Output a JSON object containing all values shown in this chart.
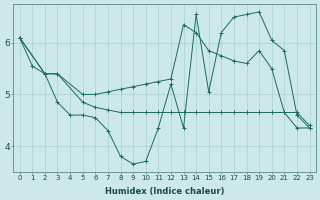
{
  "xlabel": "Humidex (Indice chaleur)",
  "bg_color": "#cce8e8",
  "line_color": "#1a6b60",
  "grid_color": "#aad0d0",
  "xlim": [
    -0.5,
    23.5
  ],
  "ylim": [
    3.5,
    6.75
  ],
  "yticks": [
    4,
    5,
    6
  ],
  "xticks": [
    0,
    1,
    2,
    3,
    4,
    5,
    6,
    7,
    8,
    9,
    10,
    11,
    12,
    13,
    14,
    15,
    16,
    17,
    18,
    19,
    20,
    21,
    22,
    23
  ],
  "line1_x": [
    0,
    1,
    2,
    3,
    4,
    5,
    6,
    7,
    8,
    9,
    10,
    11,
    12,
    13,
    14,
    15,
    16,
    17,
    18,
    19,
    20,
    21,
    22,
    23
  ],
  "line1_y": [
    6.1,
    5.55,
    5.4,
    4.85,
    4.6,
    4.6,
    4.55,
    4.3,
    3.8,
    3.65,
    3.7,
    4.35,
    5.2,
    4.35,
    6.55,
    5.05,
    6.2,
    6.5,
    6.55,
    6.6,
    6.05,
    5.85,
    4.6,
    4.35
  ],
  "line2_x": [
    0,
    2,
    3,
    5,
    6,
    7,
    8,
    9,
    10,
    11,
    12,
    13,
    14,
    15,
    16,
    17,
    18,
    19,
    20,
    21,
    22,
    23
  ],
  "line2_y": [
    6.1,
    5.4,
    5.4,
    4.85,
    4.75,
    4.7,
    4.65,
    4.65,
    4.65,
    4.65,
    4.65,
    4.65,
    4.65,
    4.65,
    4.65,
    4.65,
    4.65,
    4.65,
    4.65,
    4.65,
    4.65,
    4.4
  ],
  "line3_x": [
    0,
    2,
    3,
    5,
    6,
    7,
    8,
    9,
    10,
    11,
    12,
    13,
    14,
    15,
    16,
    17,
    18,
    19,
    20,
    21,
    22,
    23
  ],
  "line3_y": [
    6.1,
    5.4,
    5.4,
    5.0,
    5.0,
    5.05,
    5.1,
    5.15,
    5.2,
    5.25,
    5.3,
    6.35,
    6.2,
    5.85,
    5.75,
    5.65,
    5.6,
    5.85,
    5.5,
    4.65,
    4.35,
    4.35
  ]
}
